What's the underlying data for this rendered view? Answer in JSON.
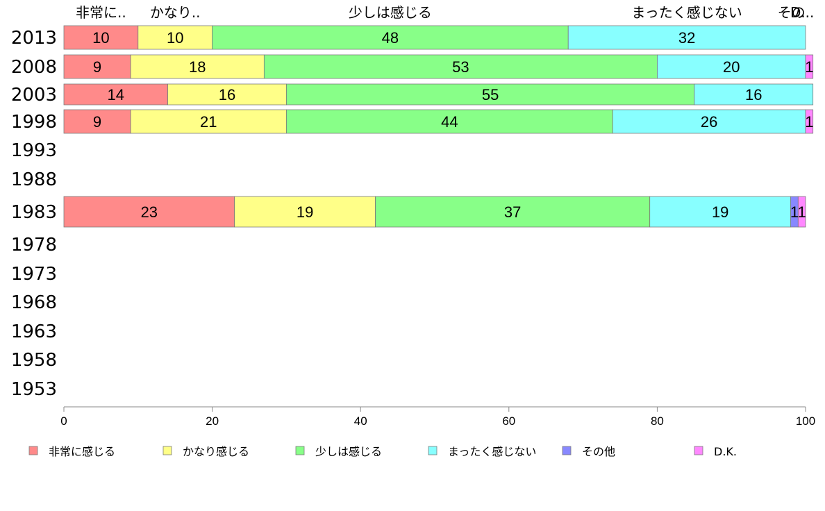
{
  "chart_data": {
    "type": "bar",
    "orientation": "horizontal",
    "stacked": true,
    "categories": [
      "2013",
      "2008",
      "2003",
      "1998",
      "1993",
      "1988",
      "1983",
      "1978",
      "1973",
      "1968",
      "1963",
      "1958",
      "1953"
    ],
    "series": [
      {
        "name": "非常に感じる",
        "color": "#ff8a8a",
        "values": [
          10,
          9,
          14,
          9,
          null,
          null,
          23,
          null,
          null,
          null,
          null,
          null,
          null
        ]
      },
      {
        "name": "かなり感じる",
        "color": "#ffff88",
        "values": [
          10,
          18,
          16,
          21,
          null,
          null,
          19,
          null,
          null,
          null,
          null,
          null,
          null
        ]
      },
      {
        "name": "少しは感じる",
        "color": "#88ff88",
        "values": [
          48,
          53,
          55,
          44,
          null,
          null,
          37,
          null,
          null,
          null,
          null,
          null,
          null
        ]
      },
      {
        "name": "まったく感じない",
        "color": "#88ffff",
        "values": [
          32,
          20,
          16,
          26,
          null,
          null,
          19,
          null,
          null,
          null,
          null,
          null,
          null
        ]
      },
      {
        "name": "その他",
        "color": "#8888ff",
        "values": [
          0,
          0,
          0,
          0,
          null,
          null,
          1,
          null,
          null,
          null,
          null,
          null,
          null
        ]
      },
      {
        "name": "D.K.",
        "color": "#ff88ff",
        "values": [
          0,
          1,
          0,
          1,
          null,
          null,
          1,
          null,
          null,
          null,
          null,
          null,
          null
        ]
      }
    ],
    "top_labels": [
      "非常に..",
      "かなり..",
      "少しは感じる",
      "まったく感じない",
      "その..",
      "D.."
    ],
    "x_ticks": [
      "0",
      "20",
      "40",
      "60",
      "80",
      "100"
    ],
    "xlim": [
      0,
      100
    ],
    "grid": false,
    "legend_position": "bottom"
  }
}
